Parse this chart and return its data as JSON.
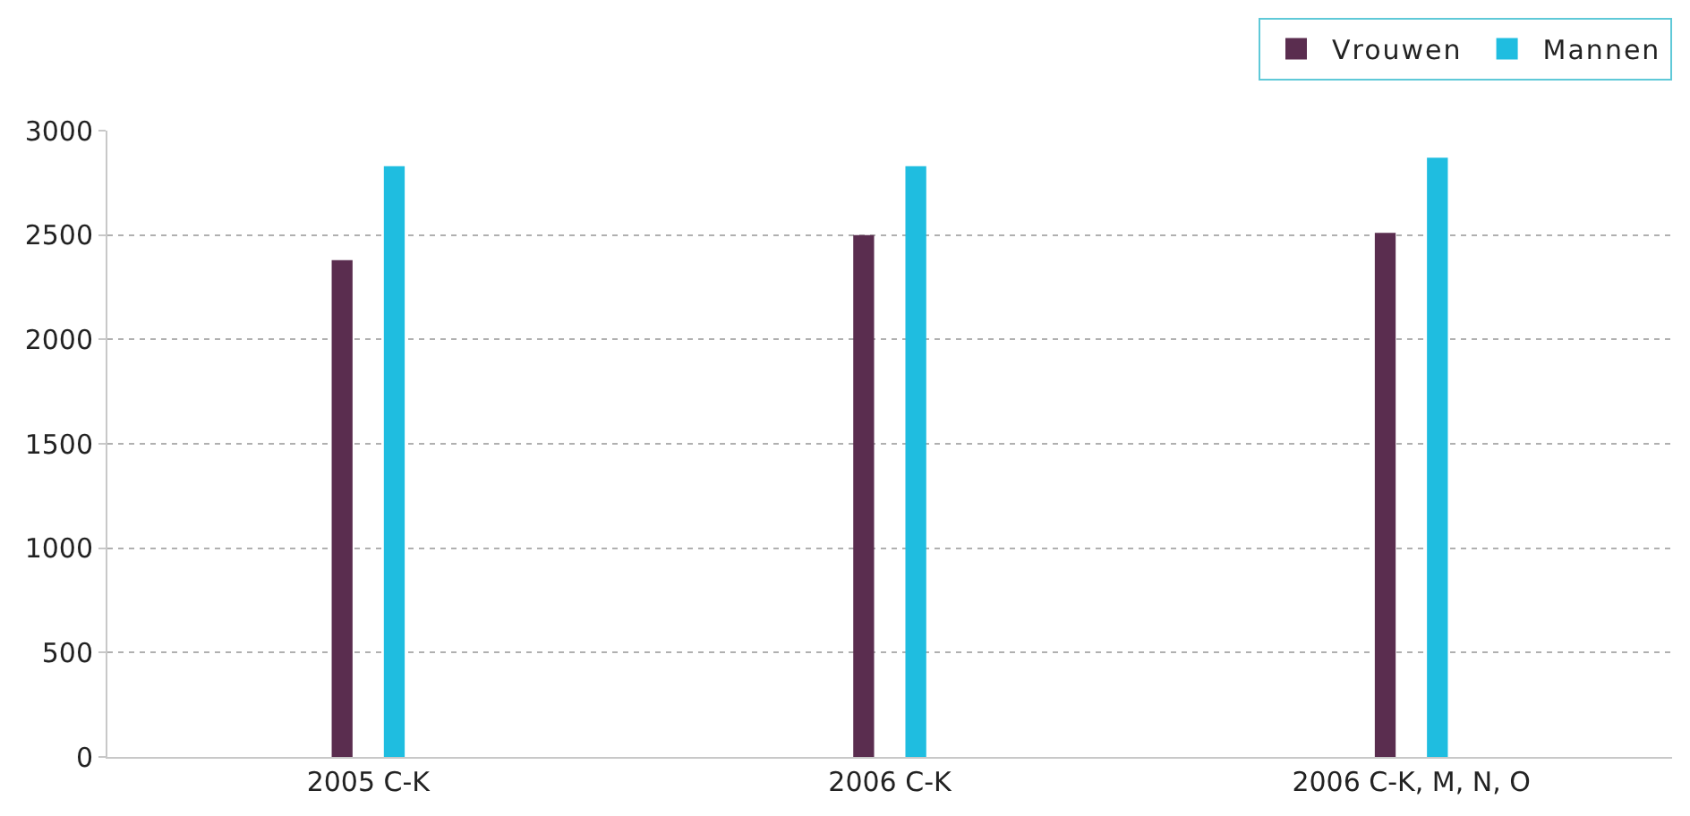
{
  "chart_data": {
    "type": "bar",
    "categories": [
      "2005 C-K",
      "2006 C-K",
      "2006 C-K, M, N, O"
    ],
    "series": [
      {
        "name": "Vrouwen",
        "color": "#5a2d4f",
        "values": [
          2380,
          2500,
          2510
        ]
      },
      {
        "name": "Mannen",
        "color": "#1fbde0",
        "values": [
          2830,
          2830,
          2870
        ]
      }
    ],
    "ylim": [
      0,
      3000
    ],
    "yticks": [
      0,
      500,
      1000,
      1500,
      2000,
      2500,
      3000
    ],
    "grid": "y",
    "legend": "top right"
  }
}
